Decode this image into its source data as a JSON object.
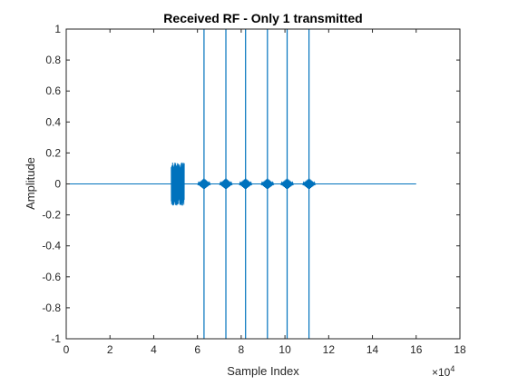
{
  "chart_data": {
    "type": "line",
    "title": "Received RF - Only 1 transmitted",
    "xlabel": "Sample Index",
    "ylabel": "Amplitude",
    "x_exponent_label": "×10",
    "x_exponent_power": "4",
    "xlim": [
      0,
      180000
    ],
    "ylim": [
      -1,
      1
    ],
    "xticks": [
      0,
      20000,
      40000,
      60000,
      80000,
      100000,
      120000,
      140000,
      160000,
      180000
    ],
    "xtick_labels": [
      "0",
      "2",
      "4",
      "6",
      "8",
      "10",
      "12",
      "14",
      "16",
      "18"
    ],
    "yticks": [
      -1,
      -0.8,
      -0.6,
      -0.4,
      -0.2,
      0,
      0.2,
      0.4,
      0.6,
      0.8,
      1
    ],
    "ytick_labels": [
      "-1",
      "-0.8",
      "-0.6",
      "-0.4",
      "-0.2",
      "0",
      "0.2",
      "0.4",
      "0.6",
      "0.8",
      "1"
    ],
    "grid": false,
    "line_color": "#0072BD",
    "series": [
      {
        "signal_start": 0,
        "signal_end": 160000,
        "noise_burst": {
          "x_start": 48000,
          "x_end": 54000,
          "amplitude": 0.14
        },
        "spikes_x": [
          63000,
          73000,
          82000,
          92000,
          101000,
          111000
        ],
        "spike_amplitude": 1
      }
    ]
  }
}
